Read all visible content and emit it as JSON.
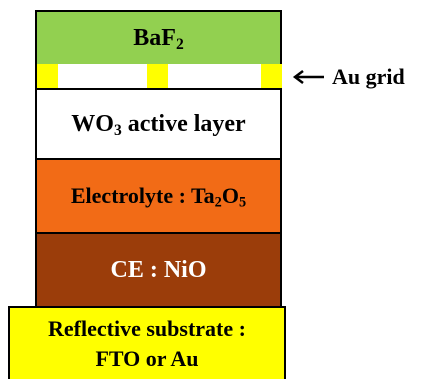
{
  "layers": {
    "baf2": {
      "label": "BaF",
      "sub": "2",
      "color": "#92d050"
    },
    "wo3": {
      "prefix": "WO",
      "sub": "3",
      "suffix": " active layer",
      "color": "#ffffff"
    },
    "electrolyte": {
      "prefix": "Electrolyte : Ta",
      "sub1": "2",
      "mid": "O",
      "sub2": "5",
      "color": "#f26b16"
    },
    "ce": {
      "label": "CE : NiO",
      "color": "#9b3d0a"
    },
    "substrate": {
      "line1": "Reflective substrate :",
      "line2": "FTO or Au",
      "color": "#ffff00"
    }
  },
  "au_grid": {
    "label": "Au grid",
    "color": "#ffff00"
  }
}
